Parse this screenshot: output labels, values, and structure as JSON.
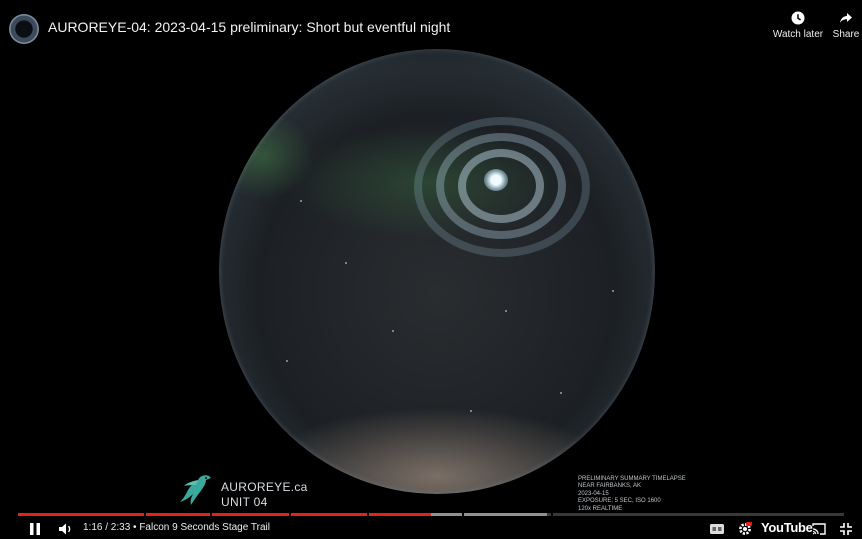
{
  "video": {
    "title": "AUROREYE-04: 2023-04-15 preliminary: Short but eventful night",
    "channel_avatar_icon": "aurora-fisheye-avatar-icon"
  },
  "top_actions": {
    "watch_later_label": "Watch later",
    "share_label": "Share"
  },
  "overlay": {
    "brand_name": "AUROREYE.ca",
    "brand_unit": "UNIT 04",
    "caption_lines": [
      "PRELIMINARY SUMMARY TIMELAPSE",
      "NEAR FAIRBANKS, AK",
      "2023-04-15",
      "EXPOSURE: 5 SEC, ISO 1600",
      "120x REALTIME"
    ]
  },
  "playback": {
    "time_text": "1:16 / 2:33 • Falcon 9 Seconds Stage Trail",
    "progress": 0.5,
    "buffered": 0.64,
    "chapter_marks": [
      0.153,
      0.232,
      0.328,
      0.423,
      0.538,
      0.645
    ]
  },
  "controls": {
    "pause_icon": "pause-icon",
    "volume_icon": "volume-icon",
    "cc_icon": "closed-captions-icon",
    "settings_icon": "gear-icon",
    "youtube_label": "YouTube",
    "cast_icon": "cast-icon",
    "fullscreen_icon": "fullscreen-icon"
  },
  "colors": {
    "progress": "#e62117",
    "background": "#000000"
  }
}
